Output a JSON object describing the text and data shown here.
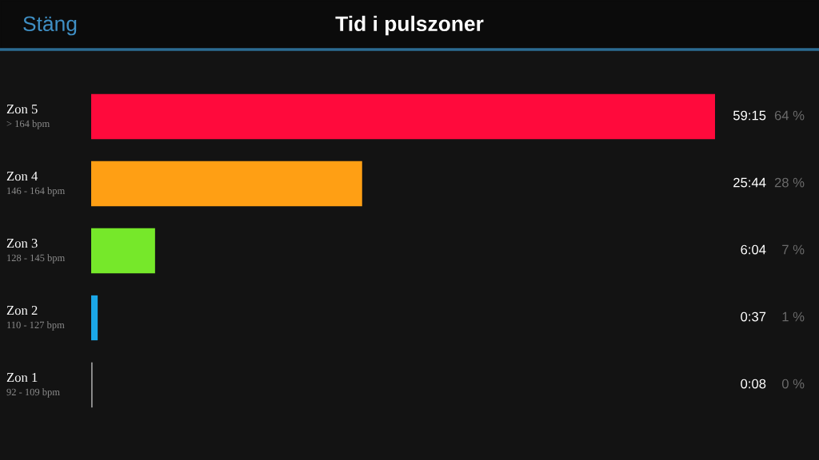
{
  "chart_data": {
    "type": "bar",
    "orientation": "horizontal",
    "title": "Tid i pulszoner",
    "categories": [
      "Zon 5\n> 164 bpm",
      "Zon 4\n146 - 164 bpm",
      "Zon 3\n128 - 145 bpm",
      "Zon 2\n110 - 127 bpm",
      "Zon 1\n92 - 109 bpm"
    ],
    "values": [
      59.25,
      25.733,
      6.067,
      0.617,
      0.133
    ],
    "colors": [
      "#ff0a3c",
      "#ff9f14",
      "#76e82a",
      "#1ba7e8",
      "#9a9a9a"
    ],
    "value_labels": [
      "59:15",
      "25:44",
      "6:04",
      "0:37",
      "0:08"
    ],
    "annotations": [
      "Stäng",
      "64 %",
      "28 %",
      "7 %",
      "1 %",
      "0 %"
    ]
  }
}
